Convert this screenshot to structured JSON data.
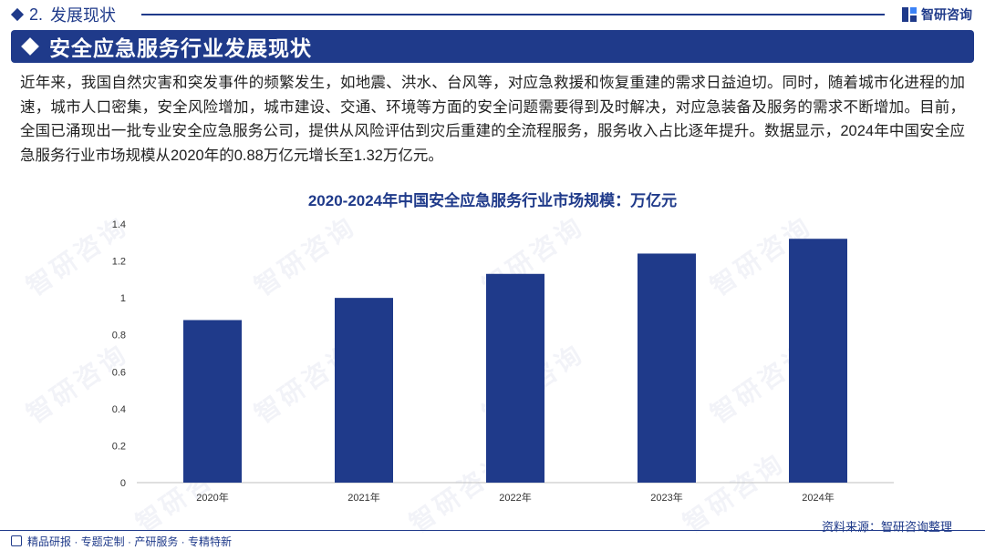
{
  "header": {
    "section_number": "2.",
    "section_title": "发展现状",
    "logo_text": "智研咨询"
  },
  "title_bar": {
    "title": "安全应急服务行业发展现状"
  },
  "body": {
    "paragraph": "近年来，我国自然灾害和突发事件的频繁发生，如地震、洪水、台风等，对应急救援和恢复重建的需求日益迫切。同时，随着城市化进程的加速，城市人口密集，安全风险增加，城市建设、交通、环境等方面的安全问题需要得到及时解决，对应急装备及服务的需求不断增加。目前，全国已涌现出一批专业安全应急服务公司，提供从风险评估到灾后重建的全流程服务，服务收入占比逐年提升。数据显示，2024年中国安全应急服务行业市场规模从2020年的0.88万亿元增长至1.32万亿元。"
  },
  "chart_data": {
    "type": "bar",
    "title": "2020-2024年中国安全应急服务行业市场规模：万亿元",
    "categories": [
      "2020年",
      "2021年",
      "2022年",
      "2023年",
      "2024年"
    ],
    "values": [
      0.88,
      1.0,
      1.13,
      1.24,
      1.32
    ],
    "ylim": [
      0,
      1.4
    ],
    "yticks": [
      "0",
      "0.2",
      "0.4",
      "0.6",
      "0.8",
      "1",
      "1.2",
      "1.4"
    ],
    "xlabel": "",
    "ylabel": "",
    "bar_color": "#1f3a8a",
    "grid": false
  },
  "footer": {
    "source": "资料来源：智研咨询整理",
    "services": "精品研报 · 专题定制 · 产研服务 · 专精特新"
  },
  "colors": {
    "brand": "#1f3a8a"
  }
}
